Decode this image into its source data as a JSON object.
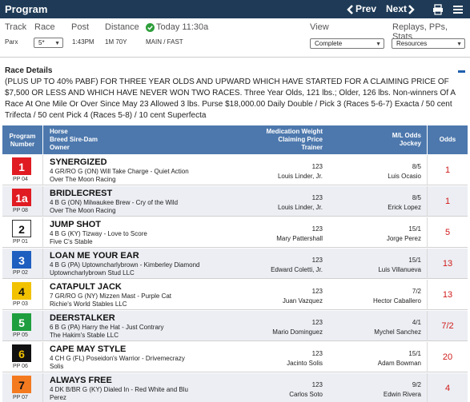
{
  "header": {
    "title": "Program",
    "prev_label": "Prev",
    "next_label": "Next",
    "icons": [
      "chevron-left-icon",
      "chevron-right-icon",
      "print-icon",
      "list-icon"
    ]
  },
  "info": {
    "track_label": "Track",
    "track_value": "Parx",
    "race_label": "Race",
    "race_value": "5*",
    "post_label": "Post",
    "post_value": "1:43PM",
    "distance_label": "Distance",
    "distance_value": "1M 70Y",
    "status_label": "Today 11:30a",
    "surface_value": "MAIN / FAST",
    "view_label": "View",
    "view_value": "Complete",
    "replays_label": "Replays, PPs, Stats",
    "replays_value": "Resources"
  },
  "race_details": {
    "title": "Race Details",
    "text": "(PLUS UP TO 40% PABF) FOR THREE YEAR OLDS AND UPWARD WHICH HAVE STARTED FOR A CLAIMING PRICE OF $7,500 OR LESS AND WHICH HAVE NEVER WON TWO RACES. Three Year Olds, 121 lbs.; Older, 126 lbs. Non-winners Of A Race At One Mile Or Over Since May 23 Allowed 3 lbs. Purse $18,000.00 Daily Double / Pick 3 (Races 5-6-7) Exacta / 50 cent Trifecta / 50 cent Pick 4 (Races 5-8) / 10 cent Superfecta"
  },
  "table": {
    "headers": {
      "program_1": "Program",
      "program_2": "Number",
      "horse_1": "Horse",
      "horse_2": "Breed Sire-Dam",
      "horse_3": "Owner",
      "med_1": "Medication Weight",
      "med_2": "Claiming Price",
      "med_3": "Trainer",
      "ml_1": "M/L Odds",
      "ml_2": "Jockey",
      "odds": "Odds"
    },
    "colors": {
      "header_bg": "#4d78ad",
      "odds_red": "#d01a1a"
    },
    "rows": [
      {
        "num": "1",
        "pp": "PP 04",
        "bg": "#e01b22",
        "fg": "#ffffff",
        "border": "#e01b22",
        "name": "SYNERGIZED",
        "sire": "4 GR/RO G (ON) Will Take Charge - Quiet Action",
        "owner": "Over The Moon Racing",
        "weight": "123",
        "trainer": "Louis Linder, Jr.",
        "ml": "8/5",
        "jockey": "Luis Ocasio",
        "odds": "1"
      },
      {
        "num": "1a",
        "pp": "PP 08",
        "bg": "#e01b22",
        "fg": "#ffffff",
        "border": "#e01b22",
        "name": "BRIDLECREST",
        "sire": "4 B G (ON) Milwaukee Brew - Cry of the Wild",
        "owner": "Over The Moon Racing",
        "weight": "123",
        "trainer": "Louis Linder, Jr.",
        "ml": "8/5",
        "jockey": "Erick Lopez",
        "odds": "1"
      },
      {
        "num": "2",
        "pp": "PP 01",
        "bg": "#ffffff",
        "fg": "#111111",
        "border": "#333333",
        "name": "JUMP SHOT",
        "sire": "4 B G (KY) Tizway - Love to Score",
        "owner": "Five C's Stable",
        "weight": "123",
        "trainer": "Mary Pattershall",
        "ml": "15/1",
        "jockey": "Jorge Perez",
        "odds": "5"
      },
      {
        "num": "3",
        "pp": "PP 02",
        "bg": "#1f5fbf",
        "fg": "#ffffff",
        "border": "#1f5fbf",
        "name": "LOAN ME YOUR EAR",
        "sire": "4 B G (PA) Uptowncharlybrown - Kimberley Diamond",
        "owner": "Uptowncharlybrown Stud LLC",
        "weight": "123",
        "trainer": "Edward Coletti, Jr.",
        "ml": "15/1",
        "jockey": "Luis Villanueva",
        "odds": "13"
      },
      {
        "num": "4",
        "pp": "PP 03",
        "bg": "#f2c200",
        "fg": "#111111",
        "border": "#f2c200",
        "name": "CATAPULT JACK",
        "sire": "7 GR/RO G (NY) Mizzen Mast - Purple Cat",
        "owner": "Richie's World Stables LLC",
        "weight": "123",
        "trainer": "Juan Vazquez",
        "ml": "7/2",
        "jockey": "Hector Caballero",
        "odds": "13"
      },
      {
        "num": "5",
        "pp": "PP 05",
        "bg": "#1e9e3e",
        "fg": "#ffffff",
        "border": "#1e9e3e",
        "name": "DEERSTALKER",
        "sire": "6 B G (PA) Harry the Hat - Just Contrary",
        "owner": "The Hakim's Stable LLC",
        "weight": "123",
        "trainer": "Mario Dominguez",
        "ml": "4/1",
        "jockey": "Mychel Sanchez",
        "odds": "7/2"
      },
      {
        "num": "6",
        "pp": "PP 06",
        "bg": "#111111",
        "fg": "#f2c200",
        "border": "#111111",
        "name": "CAPE MAY STYLE",
        "sire": "4 CH G (FL) Poseidon's Warrior - Drivemecrazy",
        "owner": "Solis",
        "weight": "123",
        "trainer": "Jacinto Solis",
        "ml": "15/1",
        "jockey": "Adam Bowman",
        "odds": "20"
      },
      {
        "num": "7",
        "pp": "PP 07",
        "bg": "#f47a20",
        "fg": "#111111",
        "border": "#f47a20",
        "name": "ALWAYS FREE",
        "sire": "4 DK B/BR G (KY) Dialed In - Red White and Blu",
        "owner": "Perez",
        "weight": "123",
        "trainer": "Carlos Soto",
        "ml": "9/2",
        "jockey": "Edwin Rivera",
        "odds": "4"
      }
    ]
  }
}
